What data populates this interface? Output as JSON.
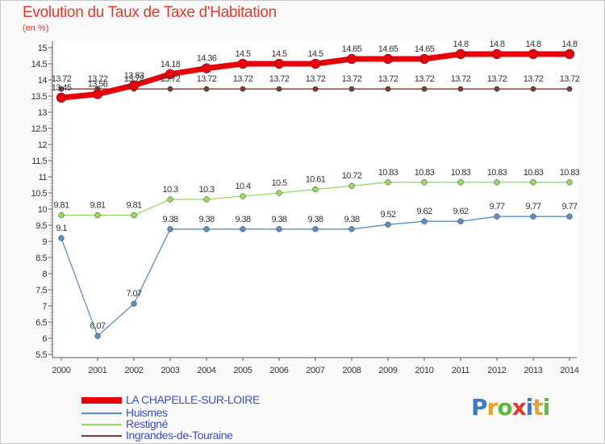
{
  "header": {
    "title": "Evolution du Taux de Taxe d'Habitation",
    "unit": "(en %)"
  },
  "colors": {
    "LA CHAPELLE-SUR-LOIRE": "#e8000b",
    "Huismes": "#5b8fc4",
    "Restigné": "#99d861",
    "Ingrandes-de-Touraine": "#7a3a3a"
  },
  "chart_data": {
    "type": "line",
    "x": [
      "2000",
      "2001",
      "2002",
      "2003",
      "2004",
      "2005",
      "2006",
      "2007",
      "2008",
      "2009",
      "2010",
      "2011",
      "2012",
      "2013",
      "2014"
    ],
    "ylim": [
      5.5,
      15
    ],
    "yticks": [
      5.5,
      6,
      6.5,
      7,
      7.5,
      8,
      8.5,
      9,
      9.5,
      10,
      10.5,
      11,
      11.5,
      12,
      12.5,
      13,
      13.5,
      14,
      14.5,
      15
    ],
    "ytick_labels": [
      "5.5",
      "6",
      "6.5",
      "7",
      "7.5",
      "8",
      "8.5",
      "9",
      "9.5",
      "10",
      "10.5",
      "11",
      "11.5",
      "12",
      "12.5",
      "13",
      "13.5",
      "14",
      "14.5",
      "15"
    ],
    "grid": false,
    "legend": "bottom-left",
    "series": [
      {
        "name": "LA CHAPELLE-SUR-LOIRE",
        "values": [
          13.45,
          13.56,
          13.83,
          14.18,
          14.36,
          14.5,
          14.5,
          14.5,
          14.65,
          14.65,
          14.65,
          14.8,
          14.8,
          14.8,
          14.8
        ],
        "labels": [
          "13.45",
          "13.56",
          "13.83",
          "14.18",
          "14.36",
          "14.5",
          "14.5",
          "14.5",
          "14.65",
          "14.65",
          "14.65",
          "14.8",
          "14.8",
          "14.8",
          "14.8"
        ]
      },
      {
        "name": "Huismes",
        "values": [
          9.1,
          6.07,
          7.07,
          9.38,
          9.38,
          9.38,
          9.38,
          9.38,
          9.38,
          9.52,
          9.62,
          9.62,
          9.77,
          9.77,
          9.77
        ],
        "labels": [
          "9.1",
          "6.07",
          "7.07",
          "9.38",
          "9.38",
          "9.38",
          "9.38",
          "9.38",
          "9.38",
          "9.52",
          "9.62",
          "9.62",
          "9.77",
          "9.77",
          "9.77"
        ]
      },
      {
        "name": "Restigné",
        "values": [
          9.81,
          9.81,
          9.81,
          10.3,
          10.3,
          10.4,
          10.5,
          10.61,
          10.72,
          10.83,
          10.83,
          10.83,
          10.83,
          10.83,
          10.83
        ],
        "labels": [
          "9.81",
          "9.81",
          "9.81",
          "10.3",
          "10.3",
          "10.4",
          "10.5",
          "10.61",
          "10.72",
          "10.83",
          "10.83",
          "10.83",
          "10.83",
          "10.83",
          "10.83"
        ]
      },
      {
        "name": "Ingrandes-de-Touraine",
        "values": [
          13.72,
          13.72,
          13.72,
          13.72,
          13.72,
          13.72,
          13.72,
          13.72,
          13.72,
          13.72,
          13.72,
          13.72,
          13.72,
          13.72,
          13.72
        ],
        "labels": [
          "13.72",
          "13.72",
          "13.72",
          "13.72",
          "13.72",
          "13.72",
          "13.72",
          "13.72",
          "13.72",
          "13.72",
          "13.72",
          "13.72",
          "13.72",
          "13.72",
          "13.72"
        ]
      }
    ]
  },
  "legend": {
    "items": [
      "LA CHAPELLE-SUR-LOIRE",
      "Huismes",
      "Restigné",
      "Ingrandes-de-Touraine"
    ]
  },
  "branding": {
    "logo_letters": [
      "P",
      "r",
      "o",
      "x",
      "i",
      "t",
      "i"
    ]
  }
}
